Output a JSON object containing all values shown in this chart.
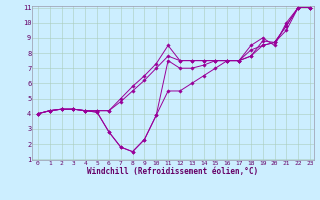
{
  "title": "",
  "xlabel": "Windchill (Refroidissement éolien,°C)",
  "bg_color": "#cceeff",
  "line_color": "#990099",
  "xmin": 0,
  "xmax": 23,
  "ymin": 1,
  "ymax": 11,
  "series": [
    [
      4.0,
      4.2,
      4.3,
      4.3,
      4.2,
      4.2,
      4.2,
      5.0,
      5.8,
      6.5,
      7.3,
      8.5,
      7.5,
      7.5,
      7.5,
      7.5,
      7.5,
      7.5,
      8.5,
      9.0,
      8.5,
      10.0,
      11.0,
      11.0
    ],
    [
      4.0,
      4.2,
      4.3,
      4.3,
      4.2,
      4.2,
      4.2,
      4.8,
      5.5,
      6.2,
      7.0,
      7.8,
      7.5,
      7.5,
      7.5,
      7.5,
      7.5,
      7.5,
      8.2,
      8.5,
      8.7,
      9.5,
      11.0,
      11.0
    ],
    [
      4.0,
      4.2,
      4.3,
      4.3,
      4.2,
      4.1,
      2.8,
      1.8,
      1.5,
      2.3,
      3.9,
      5.5,
      5.5,
      6.0,
      6.5,
      7.0,
      7.5,
      7.5,
      7.8,
      8.8,
      8.7,
      9.8,
      11.0,
      11.0
    ],
    [
      4.0,
      4.2,
      4.3,
      4.3,
      4.2,
      4.1,
      2.8,
      1.8,
      1.5,
      2.3,
      3.9,
      7.5,
      7.0,
      7.0,
      7.2,
      7.5,
      7.5,
      7.5,
      7.8,
      8.5,
      8.7,
      9.8,
      11.0,
      11.0
    ]
  ],
  "x_ticks": [
    0,
    1,
    2,
    3,
    4,
    5,
    6,
    7,
    8,
    9,
    10,
    11,
    12,
    13,
    14,
    15,
    16,
    17,
    18,
    19,
    20,
    21,
    22,
    23
  ],
  "y_ticks": [
    1,
    2,
    3,
    4,
    5,
    6,
    7,
    8,
    9,
    10,
    11
  ],
  "tick_fontsize": 4.5,
  "xlabel_fontsize": 5.5,
  "grid_color": "#aaccbb",
  "spine_color": "#9999aa"
}
